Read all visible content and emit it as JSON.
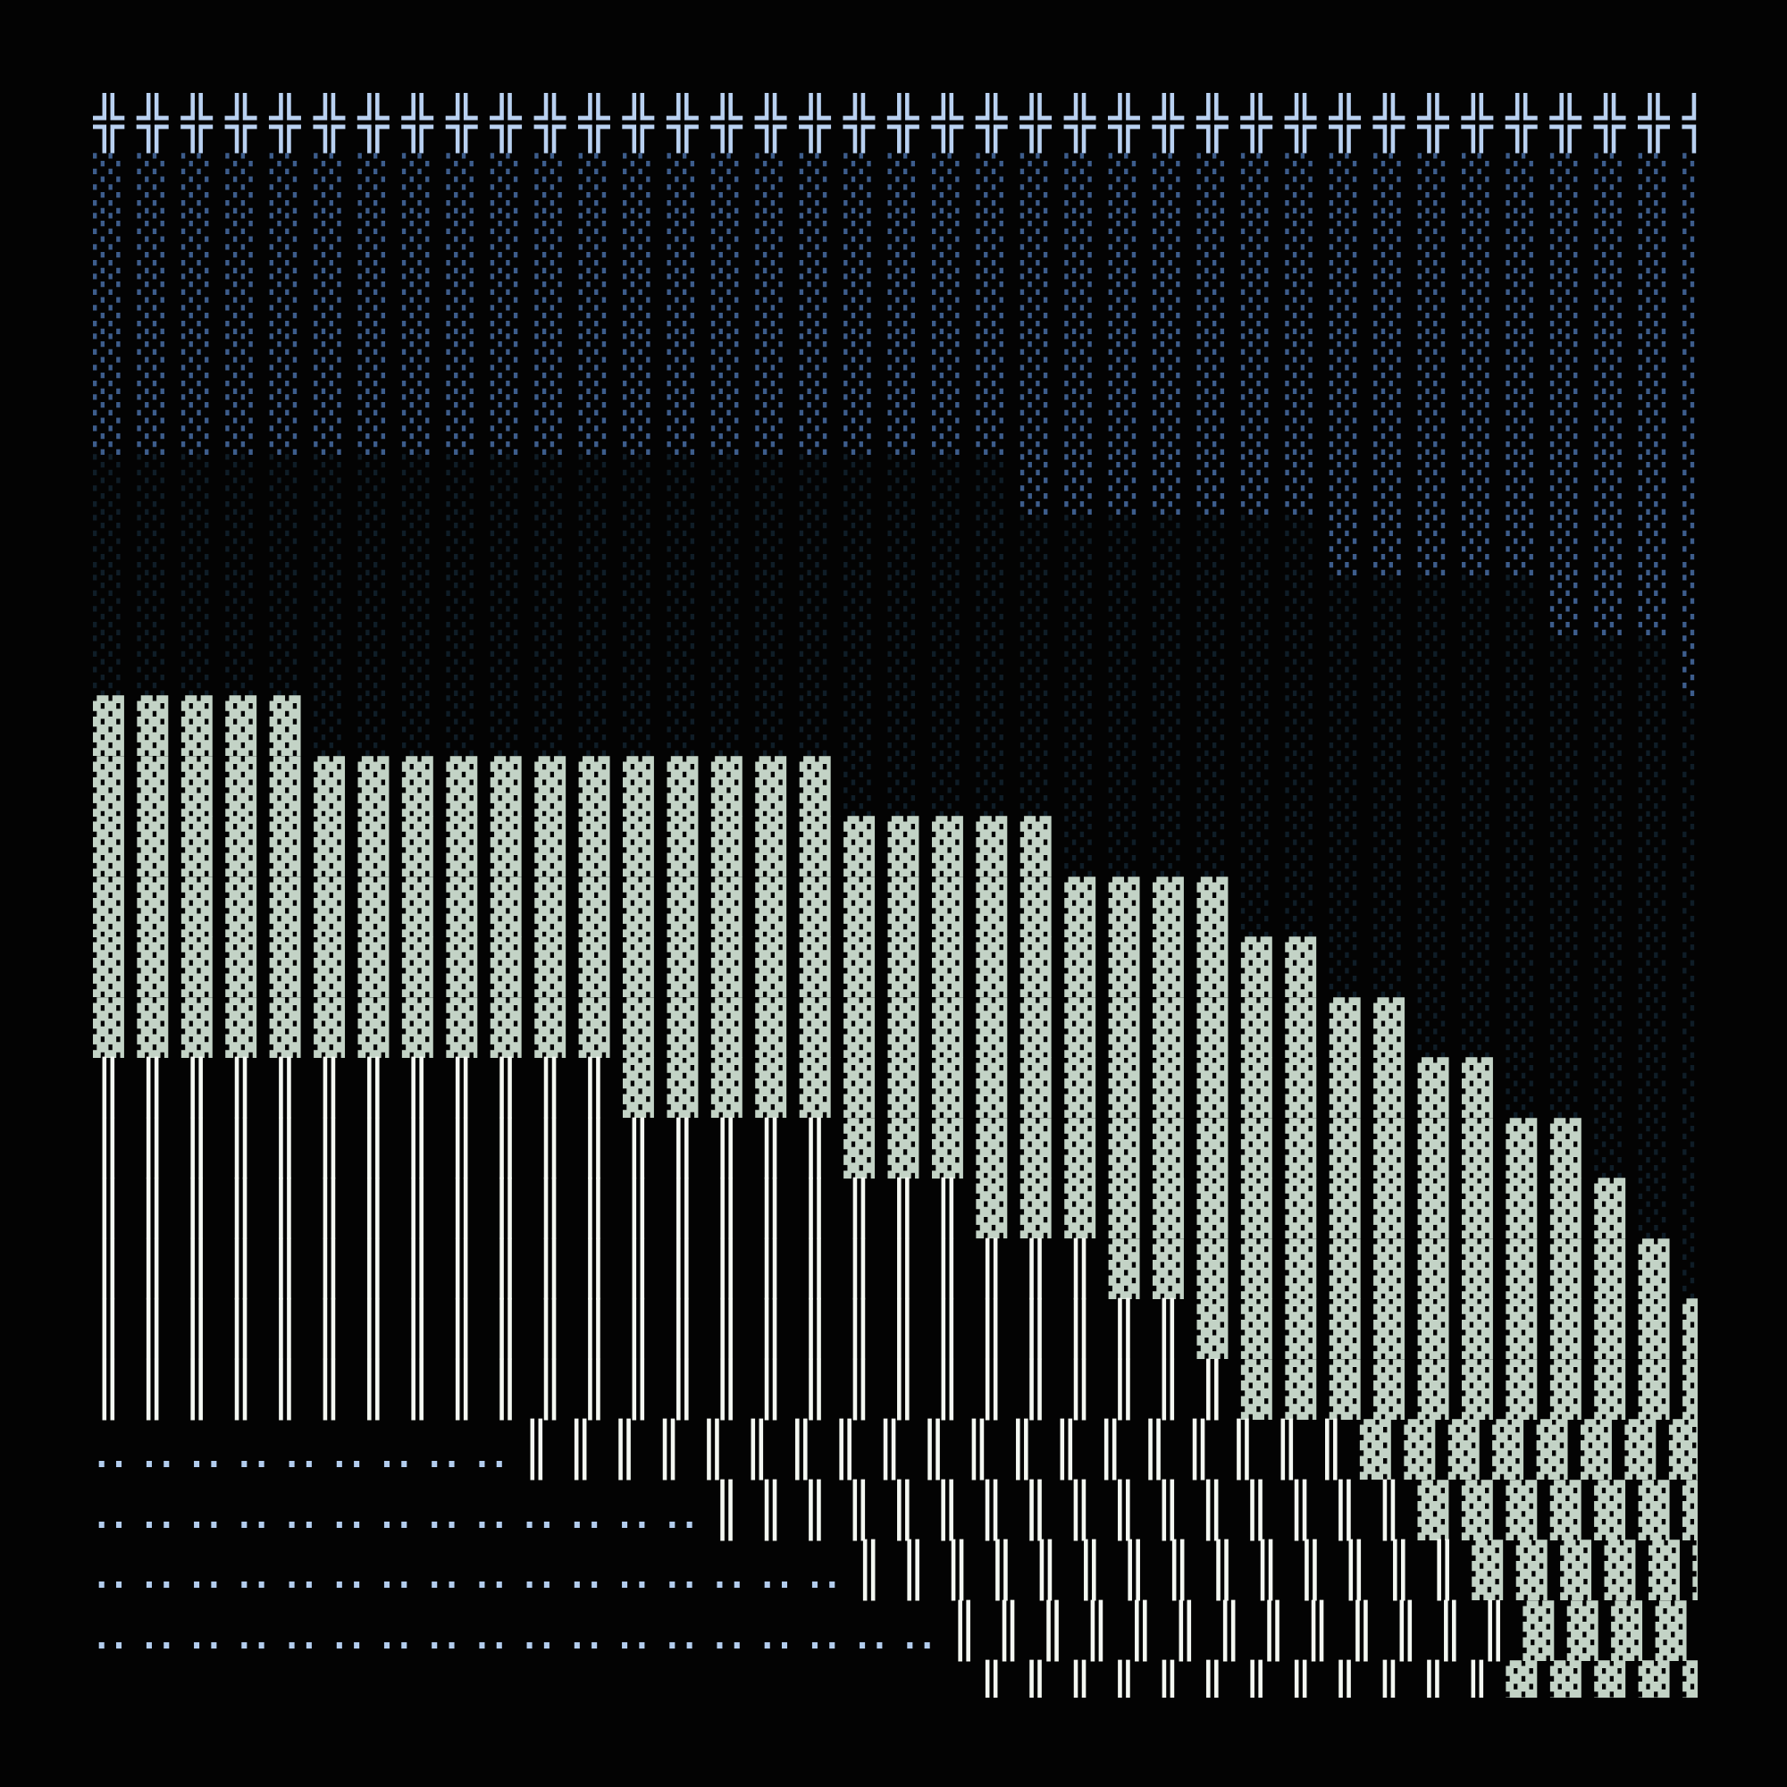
{
  "palette": {
    "cross": "#b9d1f1",
    "blue_shade": "#3d5d8c",
    "dim_shade": "#0f1d27",
    "green_shade": "#c3d3c6",
    "double_bar": "#f4f8f2",
    "dots": "#b3cdee",
    "background": "#030303"
  },
  "rows": [
    [
      [
        "╬",
        37,
        "cross"
      ]
    ],
    [
      [
        "░",
        37,
        "blue_shade"
      ]
    ],
    [
      [
        "░",
        37,
        "blue_shade"
      ]
    ],
    [
      [
        "░",
        37,
        "blue_shade"
      ]
    ],
    [
      [
        "░",
        37,
        "blue_shade"
      ]
    ],
    [
      [
        "░",
        37,
        "blue_shade"
      ]
    ],
    [
      [
        "░",
        21,
        "dim_shade"
      ],
      [
        "░",
        16,
        "blue_shade"
      ]
    ],
    [
      [
        "░",
        28,
        "dim_shade"
      ],
      [
        "░",
        9,
        "blue_shade"
      ]
    ],
    [
      [
        "░",
        33,
        "dim_shade"
      ],
      [
        "░",
        4,
        "blue_shade"
      ]
    ],
    [
      [
        "░",
        36,
        "dim_shade"
      ],
      [
        "░",
        1,
        "blue_shade"
      ]
    ],
    [
      [
        "▓",
        5,
        "green_shade"
      ],
      [
        "░",
        32,
        "dim_shade"
      ]
    ],
    [
      [
        "▓",
        17,
        "green_shade"
      ],
      [
        "░",
        20,
        "dim_shade"
      ]
    ],
    [
      [
        "▓",
        22,
        "green_shade"
      ],
      [
        "░",
        15,
        "dim_shade"
      ]
    ],
    [
      [
        "▓",
        26,
        "green_shade"
      ],
      [
        "░",
        11,
        "dim_shade"
      ]
    ],
    [
      [
        "▓",
        28,
        "green_shade"
      ],
      [
        "░",
        9,
        "dim_shade"
      ]
    ],
    [
      [
        "▓",
        30,
        "green_shade"
      ],
      [
        "░",
        7,
        "dim_shade"
      ]
    ],
    [
      [
        "║",
        12,
        "double_bar"
      ],
      [
        "▓",
        20,
        "green_shade"
      ],
      [
        "░",
        5,
        "dim_shade"
      ]
    ],
    [
      [
        "║",
        17,
        "double_bar"
      ],
      [
        "▓",
        17,
        "green_shade"
      ],
      [
        "░",
        3,
        "dim_shade"
      ]
    ],
    [
      [
        "║",
        20,
        "double_bar"
      ],
      [
        "▓",
        15,
        "green_shade"
      ],
      [
        "░",
        2,
        "dim_shade"
      ]
    ],
    [
      [
        "║",
        23,
        "double_bar"
      ],
      [
        "▓",
        13,
        "green_shade"
      ],
      [
        "░",
        1,
        "dim_shade"
      ]
    ],
    [
      [
        "║",
        25,
        "double_bar"
      ],
      [
        "▓",
        12,
        "green_shade"
      ]
    ],
    [
      [
        "║",
        26,
        "double_bar"
      ],
      [
        "▓",
        11,
        "green_shade"
      ]
    ],
    [
      [
        "‥",
        9,
        "dots"
      ],
      [
        "║",
        19,
        "double_bar"
      ],
      [
        "▓",
        9,
        "green_shade"
      ]
    ],
    [
      [
        "‥",
        13,
        "dots"
      ],
      [
        "║",
        16,
        "double_bar"
      ],
      [
        "▓",
        8,
        "green_shade"
      ]
    ],
    [
      [
        "‥",
        16,
        "dots"
      ],
      [
        "║",
        14,
        "double_bar"
      ],
      [
        "▓",
        7,
        "green_shade"
      ]
    ],
    [
      [
        "‥",
        18,
        "dots"
      ],
      [
        "║",
        13,
        "double_bar"
      ],
      [
        "▓",
        6,
        "green_shade"
      ]
    ],
    [
      [
        " ",
        20,
        "background"
      ],
      [
        "║",
        12,
        "double_bar"
      ],
      [
        "▓",
        5,
        "green_shade"
      ]
    ]
  ]
}
